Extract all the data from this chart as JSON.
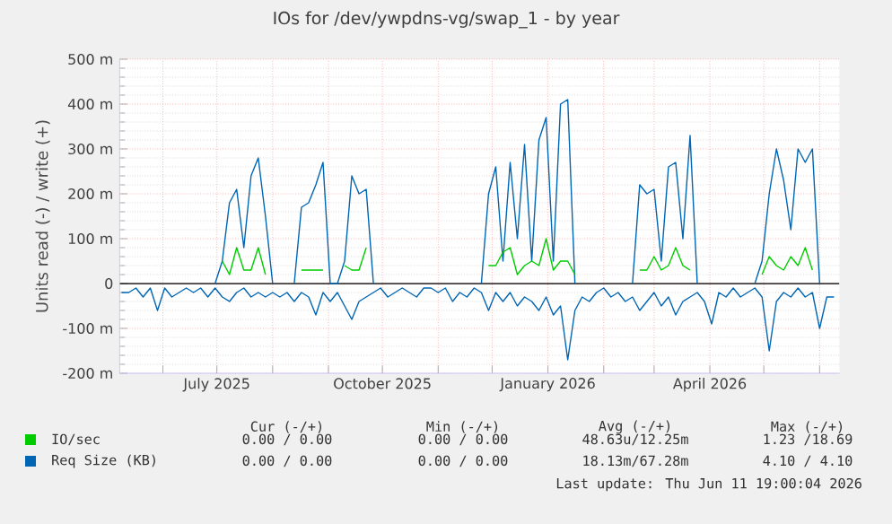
{
  "chart_data": {
    "type": "line",
    "title": "IOs for /dev/ywpdns-vg/swap_1 - by year",
    "ylabel": "Units read (-) / write (+)",
    "x": [
      "2025-05-09",
      "2025-05-13",
      "2025-05-17",
      "2025-05-21",
      "2025-05-25",
      "2025-05-29",
      "2025-06-02",
      "2025-06-06",
      "2025-06-10",
      "2025-06-14",
      "2025-06-18",
      "2025-06-22",
      "2025-06-26",
      "2025-06-30",
      "2025-07-04",
      "2025-07-08",
      "2025-07-12",
      "2025-07-16",
      "2025-07-20",
      "2025-07-24",
      "2025-07-28",
      "2025-08-01",
      "2025-08-05",
      "2025-08-09",
      "2025-08-13",
      "2025-08-17",
      "2025-08-21",
      "2025-08-25",
      "2025-08-29",
      "2025-09-02",
      "2025-09-06",
      "2025-09-10",
      "2025-09-14",
      "2025-09-18",
      "2025-09-22",
      "2025-09-26",
      "2025-09-30",
      "2025-10-04",
      "2025-10-08",
      "2025-10-12",
      "2025-10-16",
      "2025-10-20",
      "2025-10-24",
      "2025-10-28",
      "2025-11-01",
      "2025-11-05",
      "2025-11-09",
      "2025-11-13",
      "2025-11-17",
      "2025-11-21",
      "2025-11-25",
      "2025-11-29",
      "2025-12-03",
      "2025-12-07",
      "2025-12-11",
      "2025-12-15",
      "2025-12-19",
      "2025-12-23",
      "2025-12-27",
      "2025-12-31",
      "2026-01-04",
      "2026-01-08",
      "2026-01-12",
      "2026-01-16",
      "2026-01-20",
      "2026-01-24",
      "2026-01-28",
      "2026-02-01",
      "2026-02-05",
      "2026-02-09",
      "2026-02-13",
      "2026-02-17",
      "2026-02-21",
      "2026-02-25",
      "2026-03-01",
      "2026-03-05",
      "2026-03-09",
      "2026-03-13",
      "2026-03-17",
      "2026-03-21",
      "2026-03-25",
      "2026-03-29",
      "2026-04-02",
      "2026-04-06",
      "2026-04-10",
      "2026-04-14",
      "2026-04-18",
      "2026-04-22",
      "2026-04-26",
      "2026-04-30",
      "2026-05-04",
      "2026-05-08",
      "2026-05-12",
      "2026-05-16",
      "2026-05-20",
      "2026-05-24",
      "2026-05-28",
      "2026-06-01",
      "2026-06-05",
      "2026-06-09"
    ],
    "series": [
      {
        "name": "IO/sec",
        "color": "#00cc00",
        "values": [
          null,
          null,
          null,
          null,
          null,
          null,
          null,
          null,
          null,
          null,
          null,
          null,
          null,
          null,
          50,
          20,
          80,
          30,
          30,
          80,
          20,
          null,
          null,
          null,
          null,
          30,
          30,
          30,
          30,
          null,
          null,
          40,
          30,
          30,
          80,
          null,
          null,
          null,
          null,
          null,
          null,
          null,
          null,
          null,
          null,
          null,
          null,
          null,
          null,
          null,
          null,
          40,
          40,
          70,
          80,
          20,
          40,
          50,
          40,
          100,
          30,
          50,
          50,
          20,
          null,
          null,
          null,
          null,
          null,
          null,
          null,
          null,
          30,
          30,
          60,
          30,
          40,
          80,
          40,
          30,
          null,
          null,
          null,
          null,
          null,
          null,
          null,
          null,
          null,
          20,
          60,
          40,
          30,
          60,
          40,
          80,
          30,
          null,
          null,
          null
        ]
      },
      {
        "name": "Req Size (KB)",
        "color": "#0066b3",
        "values": [
          null,
          null,
          null,
          null,
          null,
          null,
          null,
          null,
          null,
          null,
          null,
          null,
          null,
          0,
          50,
          180,
          210,
          80,
          240,
          280,
          150,
          0,
          null,
          null,
          0,
          170,
          180,
          220,
          270,
          0,
          0,
          50,
          240,
          200,
          210,
          0,
          null,
          null,
          null,
          null,
          null,
          null,
          null,
          null,
          null,
          null,
          null,
          null,
          null,
          null,
          0,
          200,
          260,
          50,
          270,
          100,
          310,
          50,
          320,
          370,
          50,
          400,
          410,
          0,
          null,
          null,
          null,
          null,
          null,
          null,
          null,
          0,
          220,
          200,
          210,
          50,
          260,
          270,
          100,
          330,
          0,
          null,
          null,
          null,
          null,
          null,
          null,
          null,
          0,
          50,
          200,
          300,
          230,
          120,
          300,
          270,
          300,
          0,
          null,
          null
        ]
      },
      {
        "color": "#0066b3",
        "values": [
          -20,
          -20,
          -10,
          -30,
          -10,
          -60,
          -10,
          -30,
          -20,
          -10,
          -20,
          -10,
          -30,
          -10,
          -30,
          -40,
          -20,
          -10,
          -30,
          -20,
          -30,
          -20,
          -30,
          -20,
          -40,
          -20,
          -30,
          -70,
          -20,
          -40,
          -20,
          -50,
          -80,
          -40,
          -30,
          -20,
          -10,
          -30,
          -20,
          -10,
          -20,
          -30,
          -10,
          -10,
          -20,
          -10,
          -40,
          -20,
          -30,
          -10,
          -20,
          -60,
          -20,
          -40,
          -20,
          -50,
          -30,
          -40,
          -60,
          -30,
          -70,
          -50,
          -170,
          -60,
          -30,
          -40,
          -20,
          -10,
          -30,
          -20,
          -40,
          -30,
          -60,
          -40,
          -20,
          -50,
          -30,
          -70,
          -40,
          -30,
          -20,
          -40,
          -90,
          -20,
          -30,
          -10,
          -30,
          -20,
          -10,
          -30,
          -150,
          -40,
          -20,
          -30,
          -10,
          -30,
          -20,
          -100,
          -30,
          -30
        ]
      }
    ],
    "xlim": [
      "2025-05-08",
      "2026-06-12"
    ],
    "xticks": [
      {
        "value": "2025-06-01",
        "label": null
      },
      {
        "value": "2025-07-01",
        "label": "July 2025"
      },
      {
        "value": "2025-08-01",
        "label": null
      },
      {
        "value": "2025-09-01",
        "label": null
      },
      {
        "value": "2025-10-01",
        "label": "October 2025"
      },
      {
        "value": "2025-11-01",
        "label": null
      },
      {
        "value": "2025-12-01",
        "label": null
      },
      {
        "value": "2026-01-01",
        "label": "January 2026"
      },
      {
        "value": "2026-02-01",
        "label": null
      },
      {
        "value": "2026-03-01",
        "label": null
      },
      {
        "value": "2026-04-01",
        "label": "April 2026"
      },
      {
        "value": "2026-05-01",
        "label": null
      },
      {
        "value": "2026-06-01",
        "label": null
      }
    ],
    "ylim": [
      -200,
      500
    ],
    "yticks": [
      {
        "value": -200,
        "label": "-200 m"
      },
      {
        "value": -100,
        "label": "-100 m"
      },
      0,
      {
        "value": 100,
        "label": "100 m"
      },
      {
        "value": 200,
        "label": "200 m"
      },
      {
        "value": 300,
        "label": "300 m"
      },
      {
        "value": 400,
        "label": "400 m"
      },
      {
        "value": 500,
        "label": "500 m"
      }
    ],
    "ref_lines": [
      {
        "axis": "y",
        "value": 0,
        "color": "#000000"
      }
    ],
    "grid": true,
    "legend": "bottom",
    "marker": "none",
    "line_style": "solid",
    "annotations": [
      "Cur (-/+)",
      "Min (-/+)",
      "Avg (-/+)",
      "Max (-/+)",
      "0.00 / 0.00",
      "0.00 / 0.00",
      "48.63u/12.25m",
      "1.23 /18.69",
      "0.00 / 0.00",
      "0.00 / 0.00",
      "18.13m/67.28m",
      "4.10 / 4.10",
      "Last update: Thu Jun 11 19:00:04 2026"
    ]
  }
}
